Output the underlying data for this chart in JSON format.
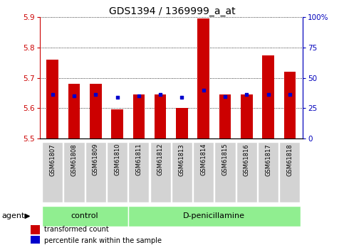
{
  "title": "GDS1394 / 1369999_a_at",
  "samples": [
    "GSM61807",
    "GSM61808",
    "GSM61809",
    "GSM61810",
    "GSM61811",
    "GSM61812",
    "GSM61813",
    "GSM61814",
    "GSM61815",
    "GSM61816",
    "GSM61817",
    "GSM61818"
  ],
  "bar_values": [
    5.76,
    5.68,
    5.68,
    5.595,
    5.645,
    5.645,
    5.6,
    5.895,
    5.645,
    5.645,
    5.775,
    5.72
  ],
  "dot_values": [
    5.645,
    5.64,
    5.645,
    5.635,
    5.64,
    5.645,
    5.635,
    5.66,
    5.638,
    5.645,
    5.645,
    5.645
  ],
  "bar_color": "#cc0000",
  "dot_color": "#0000cc",
  "ylim_left": [
    5.5,
    5.9
  ],
  "right_ticks": [
    0,
    25,
    50,
    75,
    100
  ],
  "right_tick_labels": [
    "0",
    "25",
    "50",
    "75",
    "100%"
  ],
  "left_ticks": [
    5.5,
    5.6,
    5.7,
    5.8,
    5.9
  ],
  "control_count": 4,
  "dpen_count": 8,
  "group_color": "#90ee90",
  "sample_box_color": "#d3d3d3",
  "legend": [
    {
      "color": "#cc0000",
      "label": "transformed count"
    },
    {
      "color": "#0000cc",
      "label": "percentile rank within the sample"
    }
  ],
  "background_color": "#ffffff",
  "bar_width": 0.55,
  "grid_color": "#000000",
  "left_axis_color": "#cc0000",
  "right_axis_color": "#0000bb",
  "title_fontsize": 10,
  "tick_fontsize": 7.5,
  "label_fontsize": 8
}
